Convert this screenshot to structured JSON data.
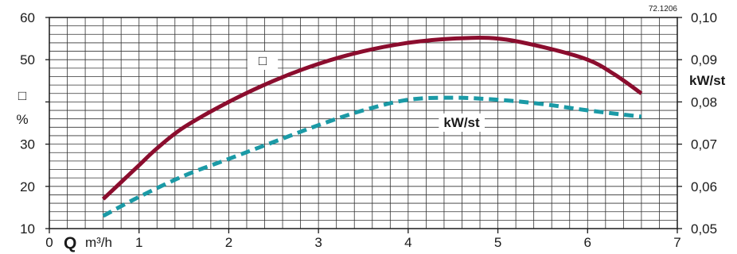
{
  "chart_data": {
    "type": "line",
    "code": "72.1206",
    "x_axis": {
      "label_symbol": "Q",
      "label_unit": "m³/h",
      "range": [
        0,
        7
      ],
      "ticks": [
        0,
        1,
        2,
        3,
        4,
        5,
        6,
        7
      ],
      "tick_labels": [
        "0",
        "1",
        "2",
        "3",
        "4",
        "5",
        "6",
        "7"
      ]
    },
    "y_left": {
      "symbol": "□",
      "unit": "%",
      "range": [
        10,
        60
      ],
      "ticks": [
        10,
        20,
        30,
        40,
        50,
        60
      ],
      "tick_labels": [
        "10",
        "20",
        "30",
        "",
        "50",
        "60"
      ]
    },
    "y_right": {
      "unit": "kW/st",
      "range": [
        0.05,
        0.1
      ],
      "ticks": [
        0.05,
        0.06,
        0.07,
        0.08,
        0.09,
        0.1
      ],
      "tick_labels": [
        "0,05",
        "0,06",
        "0,07",
        "0,08",
        "0,09",
        "0,10"
      ]
    },
    "grid": true,
    "series": [
      {
        "name": "□",
        "axis": "left",
        "style": "solid",
        "color": "#8b0d2e",
        "x": [
          0.6,
          0.8,
          1.0,
          1.2,
          1.5,
          2.0,
          2.5,
          3.0,
          3.5,
          4.0,
          4.5,
          5.0,
          5.5,
          6.0,
          6.3,
          6.6
        ],
        "y": [
          17,
          21,
          25,
          29,
          34,
          40,
          45,
          49,
          52,
          54,
          55,
          55,
          53,
          50,
          46.5,
          42
        ]
      },
      {
        "name": "kW/st",
        "axis": "right",
        "style": "dashed",
        "color": "#1b9aa6",
        "x": [
          0.6,
          1.0,
          1.5,
          2.0,
          2.5,
          3.0,
          3.5,
          4.0,
          4.5,
          5.0,
          5.5,
          6.0,
          6.6
        ],
        "y": [
          0.053,
          0.0575,
          0.0625,
          0.0665,
          0.0705,
          0.0745,
          0.078,
          0.0805,
          0.081,
          0.0805,
          0.0795,
          0.078,
          0.0765
        ]
      }
    ]
  }
}
